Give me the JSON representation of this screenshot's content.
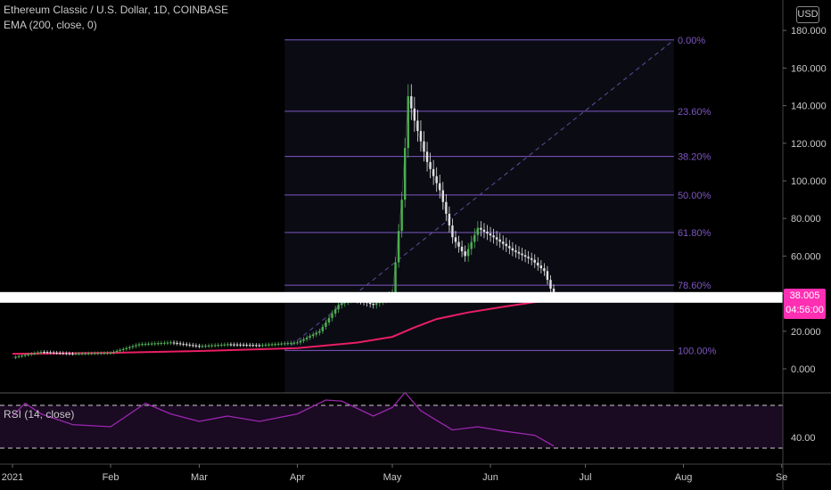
{
  "header": {
    "symbol_line": "Ethereum Classic / U.S. Dollar, 1D, COINBASE",
    "ema_label": "EMA (200, close, 0)",
    "rsi_label": "RSI (14, close)"
  },
  "scale": {
    "currency_button": "USD",
    "last_price": "38.005",
    "countdown": "04:56:00"
  },
  "colors": {
    "up": "#26a69a",
    "green_candle": "#4caf50",
    "down": "#e0e0e0",
    "ema": "#e91e63",
    "fib": "#7e57c2",
    "rsi": "#9c27b0",
    "price_tag": "#ff2fb3"
  },
  "chart_data": [
    {
      "type": "candlestick",
      "title": "Ethereum Classic / U.S. Dollar, 1D, COINBASE",
      "ylim": [
        -18,
        180
      ],
      "y_ticks": [
        "0.000",
        "20.000",
        "40.000",
        "60.000",
        "80.000",
        "100.000",
        "120.000",
        "140.000",
        "160.000",
        "180.000"
      ],
      "x_ticks": [
        "2021",
        "Feb",
        "Mar",
        "Apr",
        "May",
        "Jun",
        "Jul",
        "Aug",
        "Se"
      ],
      "series": [
        {
          "name": "ETC/USD close",
          "points": [
            [
              "2021-01-01",
              6.0
            ],
            [
              "2021-01-10",
              9.0
            ],
            [
              "2021-01-20",
              8.0
            ],
            [
              "2021-02-01",
              8.5
            ],
            [
              "2021-02-10",
              13.0
            ],
            [
              "2021-02-20",
              14.0
            ],
            [
              "2021-03-01",
              12.0
            ],
            [
              "2021-03-10",
              13.0
            ],
            [
              "2021-03-20",
              12.5
            ],
            [
              "2021-04-01",
              14.0
            ],
            [
              "2021-04-08",
              20.0
            ],
            [
              "2021-04-14",
              34.0
            ],
            [
              "2021-04-18",
              38.0
            ],
            [
              "2021-04-25",
              34.0
            ],
            [
              "2021-05-01",
              40.0
            ],
            [
              "2021-05-04",
              90.0
            ],
            [
              "2021-05-06",
              145.0
            ],
            [
              "2021-05-08",
              132.0
            ],
            [
              "2021-05-12",
              110.0
            ],
            [
              "2021-05-16",
              95.0
            ],
            [
              "2021-05-20",
              70.0
            ],
            [
              "2021-05-24",
              60.0
            ],
            [
              "2021-05-28",
              75.0
            ],
            [
              "2021-06-02",
              70.0
            ],
            [
              "2021-06-08",
              63.0
            ],
            [
              "2021-06-14",
              58.0
            ],
            [
              "2021-06-18",
              52.0
            ],
            [
              "2021-06-21",
              38.0
            ]
          ]
        },
        {
          "name": "EMA (200, close, 0)",
          "points": [
            [
              "2021-01-01",
              8.0
            ],
            [
              "2021-02-01",
              8.5
            ],
            [
              "2021-03-01",
              9.5
            ],
            [
              "2021-04-01",
              11.0
            ],
            [
              "2021-04-20",
              14.0
            ],
            [
              "2021-05-01",
              17.0
            ],
            [
              "2021-05-08",
              22.0
            ],
            [
              "2021-05-15",
              26.5
            ],
            [
              "2021-05-25",
              30.0
            ],
            [
              "2021-06-05",
              33.0
            ],
            [
              "2021-06-15",
              35.5
            ],
            [
              "2021-06-21",
              36.5
            ]
          ]
        }
      ],
      "last_value": 38.005,
      "annotations": {
        "fib_levels": [
          {
            "label": "0.00%",
            "price": 175.0
          },
          {
            "label": "23.60%",
            "price": 137.0
          },
          {
            "label": "38.20%",
            "price": 113.0
          },
          {
            "label": "50.00%",
            "price": 92.5
          },
          {
            "label": "61.80%",
            "price": 72.5
          },
          {
            "label": "78.60%",
            "price": 44.5
          },
          {
            "label": "100.00%",
            "price": 9.8
          }
        ],
        "fib_time_range": [
          "2021-03-28",
          "2021-07-29"
        ]
      },
      "grid": false
    },
    {
      "type": "line",
      "title": "RSI (14, close)",
      "y_ticks": [
        "40.00"
      ],
      "bands": [
        30,
        70
      ],
      "series": [
        {
          "name": "RSI (14, close)",
          "points": [
            [
              "2021-01-01",
              60
            ],
            [
              "2021-01-05",
              72
            ],
            [
              "2021-01-10",
              62
            ],
            [
              "2021-01-20",
              52
            ],
            [
              "2021-02-01",
              50
            ],
            [
              "2021-02-12",
              72
            ],
            [
              "2021-02-20",
              62
            ],
            [
              "2021-03-01",
              55
            ],
            [
              "2021-03-10",
              60
            ],
            [
              "2021-03-20",
              55
            ],
            [
              "2021-04-01",
              62
            ],
            [
              "2021-04-10",
              75
            ],
            [
              "2021-04-15",
              74
            ],
            [
              "2021-04-25",
              60
            ],
            [
              "2021-05-01",
              68
            ],
            [
              "2021-05-05",
              82
            ],
            [
              "2021-05-10",
              65
            ],
            [
              "2021-05-20",
              47
            ],
            [
              "2021-05-28",
              50
            ],
            [
              "2021-06-05",
              46
            ],
            [
              "2021-06-15",
              42
            ],
            [
              "2021-06-21",
              32
            ]
          ]
        }
      ]
    }
  ]
}
